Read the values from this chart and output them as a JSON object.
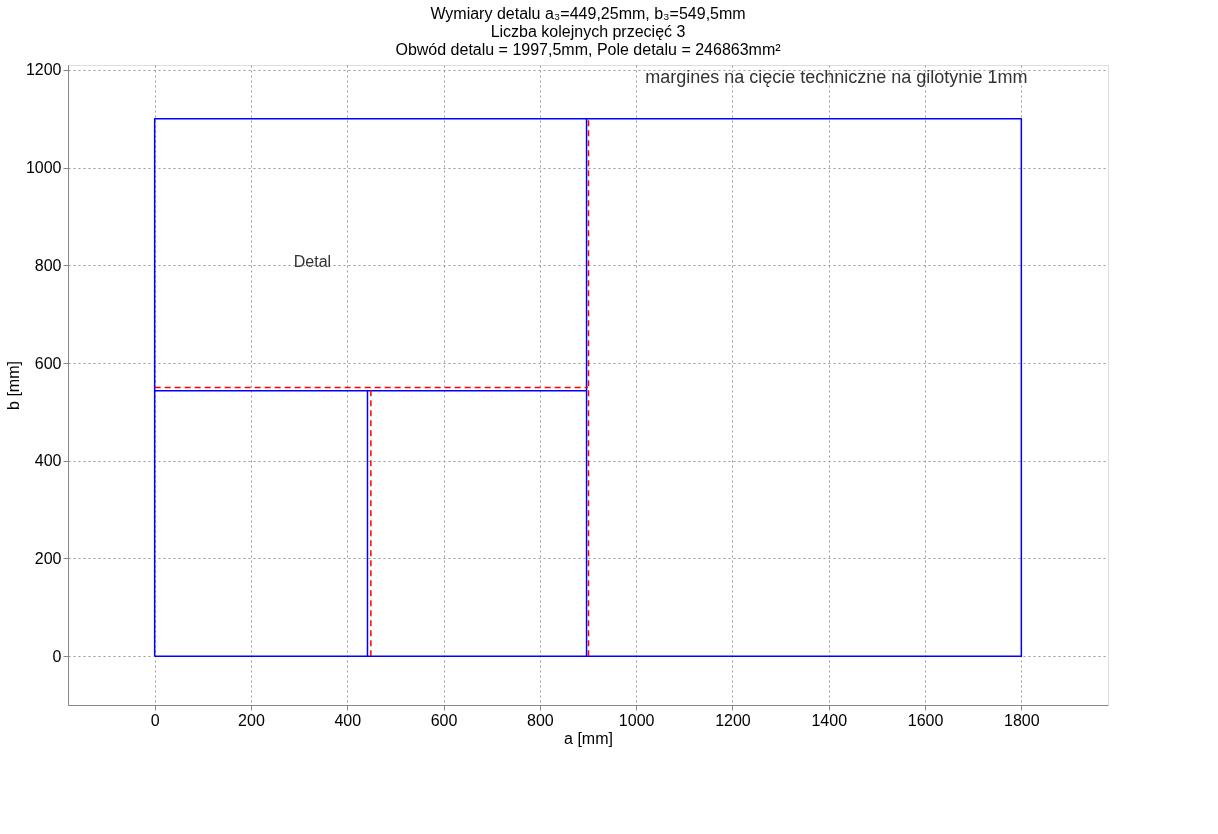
{
  "chart_data": {
    "type": "line",
    "title": [
      "Wymiary detalu a₃=449,25mm, b₃=549,5mm",
      "Liczba kolejnych przecięć 3",
      "Obwód detalu = 1997,5mm, Pole detalu = 246863mm²"
    ],
    "xlabel": "a [mm]",
    "ylabel": "b [mm]",
    "xlim": [
      -180,
      1980
    ],
    "ylim": [
      -100,
      1210
    ],
    "xticks": [
      0,
      200,
      400,
      600,
      800,
      1000,
      1200,
      1400,
      1600,
      1800
    ],
    "yticks": [
      0,
      200,
      400,
      600,
      800,
      1000,
      1200
    ],
    "grid": true,
    "marker": "none",
    "series": [
      {
        "color": "#0000ff",
        "line_style": "solid",
        "x": [
          0,
          1800,
          1800,
          0,
          0,
          897,
          null,
          897,
          897,
          null,
          442,
          442,
          null,
          0,
          0
        ],
        "values": [
          0,
          0,
          1100,
          1100,
          543,
          543,
          null,
          0,
          1100,
          null,
          543,
          0,
          null,
          0,
          543
        ]
      },
      {
        "color": "#ff0000",
        "line_style": "dashed",
        "x": [
          449,
          449,
          null,
          0,
          900,
          null,
          901,
          901
        ],
        "values": [
          0,
          550,
          null,
          550,
          550,
          null,
          0,
          1100
        ]
      }
    ],
    "annotations": [
      "Detal",
      "margines na cięcie techniczne na gilotynie 1mm"
    ]
  }
}
